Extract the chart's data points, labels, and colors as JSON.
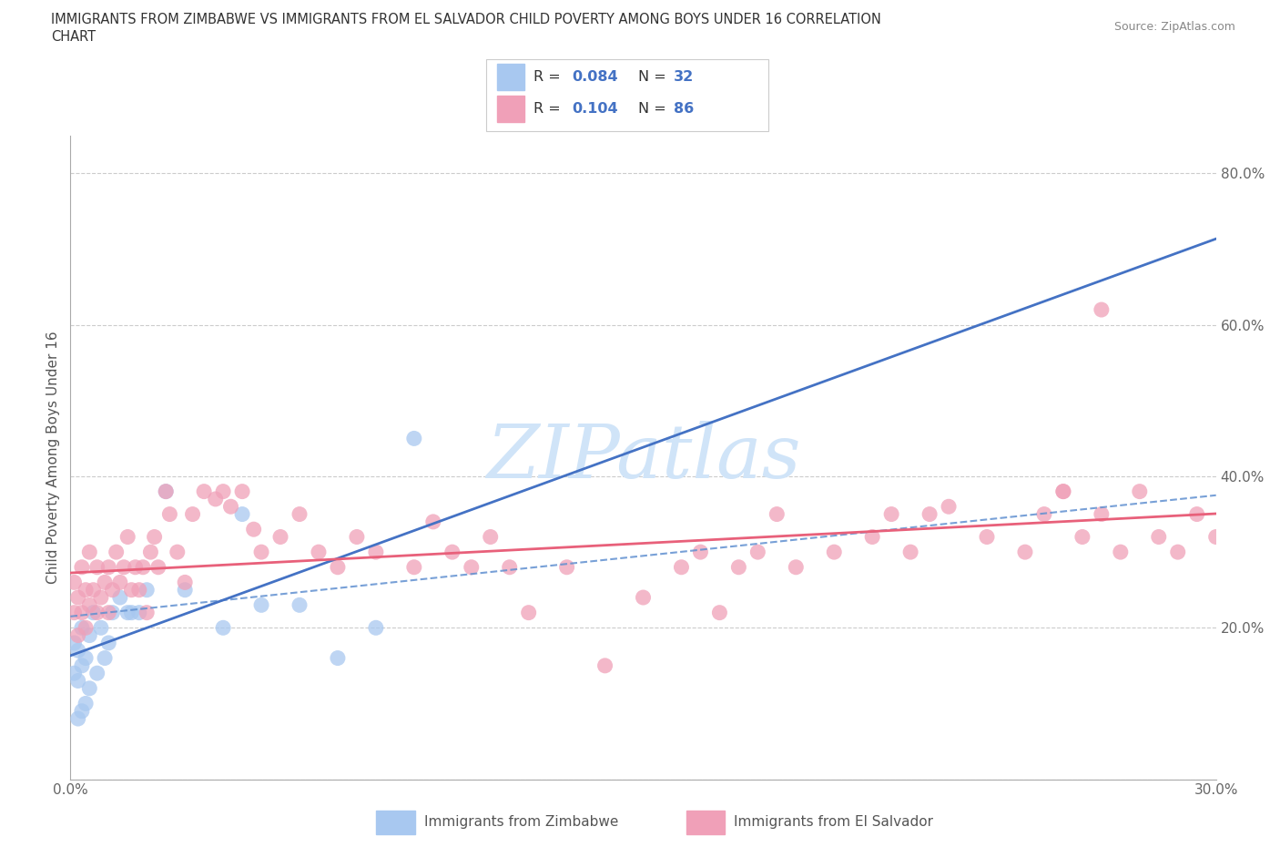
{
  "title_line1": "IMMIGRANTS FROM ZIMBABWE VS IMMIGRANTS FROM EL SALVADOR CHILD POVERTY AMONG BOYS UNDER 16 CORRELATION",
  "title_line2": "CHART",
  "source": "Source: ZipAtlas.com",
  "ylabel": "Child Poverty Among Boys Under 16",
  "xlim": [
    0.0,
    0.3
  ],
  "ylim": [
    0.0,
    0.85
  ],
  "color_zim": "#a8c8f0",
  "color_sal": "#f0a0b8",
  "color_zim_line": "#4472c4",
  "color_sal_line": "#e8607a",
  "color_zim_dash": "#6090d0",
  "watermark_text": "ZIPatlas",
  "watermark_color": "#d0e4f8",
  "legend_r_zim": "0.084",
  "legend_n_zim": "32",
  "legend_r_sal": "0.104",
  "legend_n_sal": "86",
  "legend_color": "#4472c4",
  "zim_x": [
    0.001,
    0.001,
    0.002,
    0.002,
    0.002,
    0.003,
    0.003,
    0.003,
    0.004,
    0.004,
    0.005,
    0.005,
    0.006,
    0.007,
    0.008,
    0.009,
    0.01,
    0.011,
    0.013,
    0.015,
    0.016,
    0.018,
    0.02,
    0.025,
    0.03,
    0.04,
    0.045,
    0.05,
    0.06,
    0.07,
    0.08,
    0.09
  ],
  "zim_y": [
    0.14,
    0.18,
    0.08,
    0.13,
    0.17,
    0.09,
    0.15,
    0.2,
    0.1,
    0.16,
    0.12,
    0.19,
    0.22,
    0.14,
    0.2,
    0.16,
    0.18,
    0.22,
    0.24,
    0.22,
    0.22,
    0.22,
    0.25,
    0.38,
    0.25,
    0.2,
    0.35,
    0.23,
    0.23,
    0.16,
    0.2,
    0.45
  ],
  "sal_x": [
    0.001,
    0.001,
    0.002,
    0.002,
    0.003,
    0.003,
    0.004,
    0.004,
    0.005,
    0.005,
    0.006,
    0.007,
    0.007,
    0.008,
    0.009,
    0.01,
    0.01,
    0.011,
    0.012,
    0.013,
    0.014,
    0.015,
    0.016,
    0.017,
    0.018,
    0.019,
    0.02,
    0.021,
    0.022,
    0.023,
    0.025,
    0.026,
    0.028,
    0.03,
    0.032,
    0.035,
    0.038,
    0.04,
    0.042,
    0.045,
    0.048,
    0.05,
    0.055,
    0.06,
    0.065,
    0.07,
    0.075,
    0.08,
    0.09,
    0.095,
    0.1,
    0.105,
    0.11,
    0.115,
    0.12,
    0.13,
    0.14,
    0.15,
    0.16,
    0.165,
    0.17,
    0.175,
    0.18,
    0.185,
    0.19,
    0.2,
    0.21,
    0.215,
    0.22,
    0.225,
    0.23,
    0.24,
    0.25,
    0.255,
    0.26,
    0.265,
    0.27,
    0.275,
    0.28,
    0.285,
    0.29,
    0.295,
    0.3,
    0.305,
    0.26,
    0.27
  ],
  "sal_y": [
    0.22,
    0.26,
    0.19,
    0.24,
    0.22,
    0.28,
    0.2,
    0.25,
    0.23,
    0.3,
    0.25,
    0.22,
    0.28,
    0.24,
    0.26,
    0.22,
    0.28,
    0.25,
    0.3,
    0.26,
    0.28,
    0.32,
    0.25,
    0.28,
    0.25,
    0.28,
    0.22,
    0.3,
    0.32,
    0.28,
    0.38,
    0.35,
    0.3,
    0.26,
    0.35,
    0.38,
    0.37,
    0.38,
    0.36,
    0.38,
    0.33,
    0.3,
    0.32,
    0.35,
    0.3,
    0.28,
    0.32,
    0.3,
    0.28,
    0.34,
    0.3,
    0.28,
    0.32,
    0.28,
    0.22,
    0.28,
    0.15,
    0.24,
    0.28,
    0.3,
    0.22,
    0.28,
    0.3,
    0.35,
    0.28,
    0.3,
    0.32,
    0.35,
    0.3,
    0.35,
    0.36,
    0.32,
    0.3,
    0.35,
    0.38,
    0.32,
    0.35,
    0.3,
    0.38,
    0.32,
    0.3,
    0.35,
    0.32,
    0.35,
    0.38,
    0.62
  ]
}
